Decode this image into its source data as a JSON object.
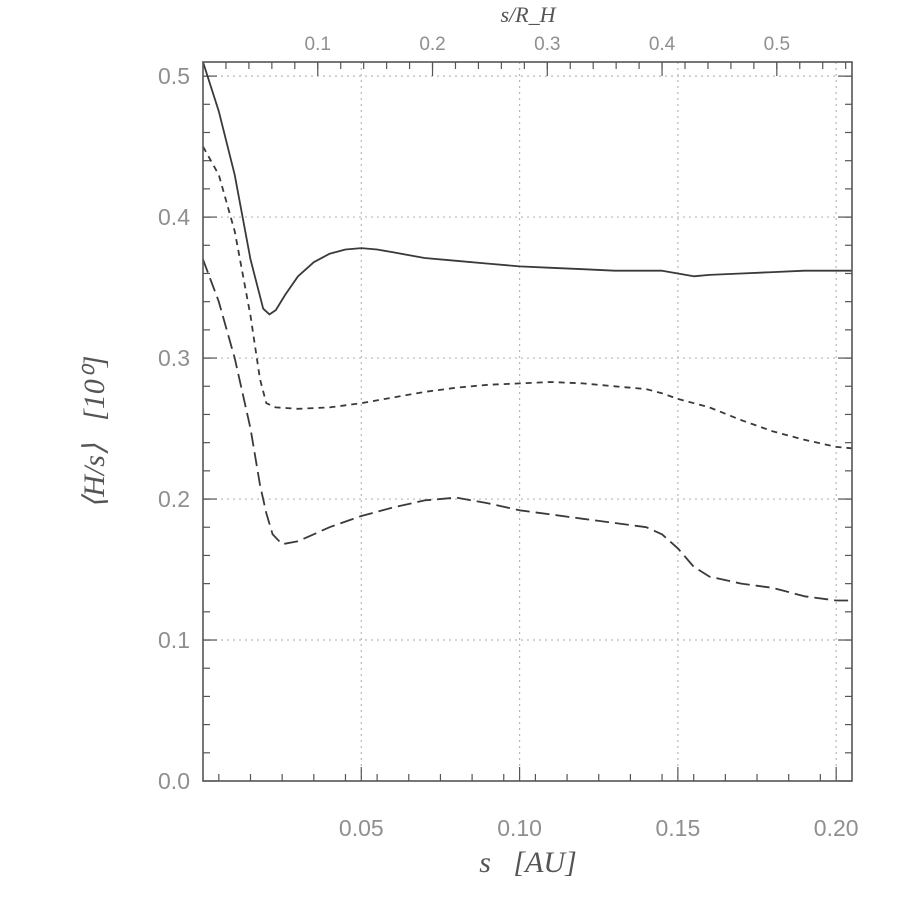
{
  "chart_data": {
    "type": "line",
    "xlabel": "s   [AU]",
    "ylabel": "⟨H/s⟩   [10⁰]",
    "top_xlabel": "s/R_H",
    "xlim": [
      0.0,
      0.205
    ],
    "ylim": [
      0.0,
      0.51
    ],
    "x_ticks": [
      {
        "value": 0.05,
        "label": "0.05"
      },
      {
        "value": 0.1,
        "label": "0.10"
      },
      {
        "value": 0.15,
        "label": "0.15"
      },
      {
        "value": 0.2,
        "label": "0.20"
      }
    ],
    "y_ticks": [
      {
        "value": 0.0,
        "label": "0.0"
      },
      {
        "value": 0.1,
        "label": "0.1"
      },
      {
        "value": 0.2,
        "label": "0.2"
      },
      {
        "value": 0.3,
        "label": "0.3"
      },
      {
        "value": 0.4,
        "label": "0.4"
      },
      {
        "value": 0.5,
        "label": "0.5"
      }
    ],
    "top_ticks": [
      {
        "value": 0.1,
        "label": "0.1"
      },
      {
        "value": 0.2,
        "label": "0.2"
      },
      {
        "value": 0.3,
        "label": "0.3"
      },
      {
        "value": 0.4,
        "label": "0.4"
      },
      {
        "value": 0.5,
        "label": "0.5"
      }
    ],
    "top_axis_scale_AU_per_unit": 0.3625,
    "grid": true,
    "series": [
      {
        "style": "solid",
        "x": [
          0.0,
          0.005,
          0.01,
          0.015,
          0.019,
          0.021,
          0.023,
          0.026,
          0.03,
          0.035,
          0.04,
          0.045,
          0.05,
          0.055,
          0.06,
          0.07,
          0.08,
          0.09,
          0.1,
          0.11,
          0.12,
          0.13,
          0.14,
          0.145,
          0.15,
          0.155,
          0.16,
          0.17,
          0.18,
          0.19,
          0.2,
          0.205
        ],
        "y": [
          0.51,
          0.475,
          0.43,
          0.37,
          0.335,
          0.331,
          0.334,
          0.345,
          0.358,
          0.368,
          0.374,
          0.377,
          0.378,
          0.377,
          0.375,
          0.371,
          0.369,
          0.367,
          0.365,
          0.364,
          0.363,
          0.362,
          0.362,
          0.362,
          0.36,
          0.358,
          0.359,
          0.36,
          0.361,
          0.362,
          0.362,
          0.362
        ]
      },
      {
        "style": "dashed",
        "x": [
          0.0,
          0.005,
          0.01,
          0.015,
          0.018,
          0.02,
          0.023,
          0.03,
          0.04,
          0.05,
          0.06,
          0.07,
          0.08,
          0.09,
          0.1,
          0.11,
          0.12,
          0.13,
          0.14,
          0.145,
          0.15,
          0.16,
          0.17,
          0.18,
          0.19,
          0.2,
          0.205
        ],
        "y": [
          0.45,
          0.43,
          0.39,
          0.33,
          0.285,
          0.268,
          0.265,
          0.264,
          0.265,
          0.268,
          0.272,
          0.276,
          0.279,
          0.281,
          0.282,
          0.283,
          0.282,
          0.28,
          0.278,
          0.275,
          0.271,
          0.265,
          0.256,
          0.248,
          0.242,
          0.237,
          0.236
        ]
      },
      {
        "style": "long-dashed",
        "x": [
          0.0,
          0.005,
          0.01,
          0.015,
          0.018,
          0.02,
          0.022,
          0.025,
          0.03,
          0.04,
          0.05,
          0.06,
          0.07,
          0.08,
          0.09,
          0.1,
          0.11,
          0.12,
          0.13,
          0.14,
          0.145,
          0.15,
          0.155,
          0.16,
          0.17,
          0.18,
          0.19,
          0.2,
          0.205
        ],
        "y": [
          0.37,
          0.34,
          0.3,
          0.25,
          0.21,
          0.19,
          0.175,
          0.168,
          0.17,
          0.18,
          0.188,
          0.194,
          0.199,
          0.201,
          0.197,
          0.192,
          0.189,
          0.186,
          0.183,
          0.18,
          0.175,
          0.165,
          0.152,
          0.145,
          0.14,
          0.137,
          0.131,
          0.128,
          0.128
        ]
      }
    ]
  }
}
